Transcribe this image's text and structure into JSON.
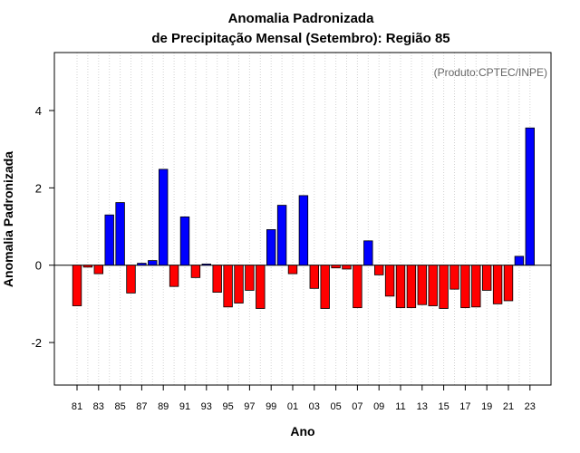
{
  "chart_data": {
    "type": "bar",
    "title_line1": "Anomalia Padronizada",
    "title_line2": "de Precipitação Mensal (Setembro): Região 85",
    "xlabel": "Ano",
    "ylabel": "Anomalia Padronizada",
    "annotation": "(Produto:CPTEC/INPE)",
    "ylim": [
      -3.1,
      5.5
    ],
    "yticks": [
      -2,
      0,
      2,
      4
    ],
    "grid": "vertical dotted",
    "colors": {
      "positive": "#0000ff",
      "negative": "#ff0000",
      "zero_line": "#000000",
      "grid": "#d3d3d3"
    },
    "categories": [
      "81",
      "82",
      "83",
      "84",
      "85",
      "86",
      "87",
      "88",
      "89",
      "90",
      "91",
      "92",
      "93",
      "94",
      "95",
      "96",
      "97",
      "98",
      "99",
      "00",
      "01",
      "02",
      "03",
      "04",
      "05",
      "06",
      "07",
      "08",
      "09",
      "10",
      "11",
      "12",
      "13",
      "14",
      "15",
      "16",
      "17",
      "18",
      "19",
      "20",
      "21",
      "22",
      "23"
    ],
    "xtick_labels": [
      "81",
      "83",
      "85",
      "87",
      "89",
      "91",
      "93",
      "95",
      "97",
      "99",
      "01",
      "03",
      "05",
      "07",
      "09",
      "11",
      "13",
      "15",
      "17",
      "19",
      "21",
      "23"
    ],
    "values": [
      -1.05,
      -0.05,
      -0.22,
      1.3,
      1.62,
      -0.72,
      0.05,
      0.12,
      2.48,
      -0.55,
      1.25,
      -0.32,
      0.03,
      -0.7,
      -1.08,
      -0.98,
      -0.65,
      -1.12,
      0.92,
      1.55,
      -0.22,
      1.8,
      -0.6,
      -1.12,
      -0.07,
      -0.1,
      -1.1,
      0.63,
      -0.25,
      -0.8,
      -1.1,
      -1.1,
      -1.02,
      -1.05,
      -1.12,
      -0.62,
      -1.1,
      -1.08,
      -0.65,
      -1.0,
      -0.92,
      0.23,
      3.55
    ]
  }
}
